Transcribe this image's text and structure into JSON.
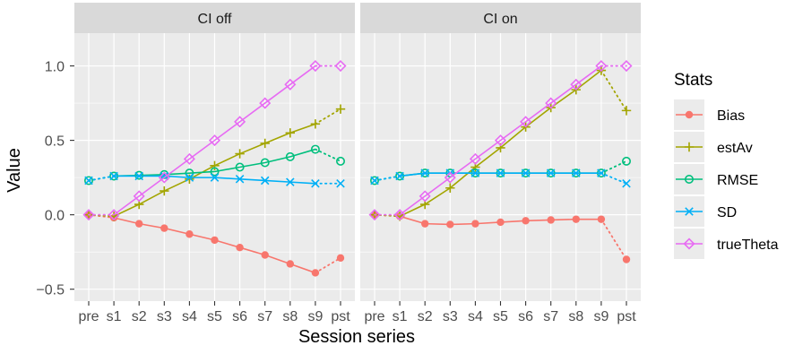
{
  "chart_data": {
    "type": "line",
    "categories": [
      "pre",
      "s1",
      "s2",
      "s3",
      "s4",
      "s5",
      "s6",
      "s7",
      "s8",
      "s9",
      "pst"
    ],
    "xlabel": "Session series",
    "ylabel": "Value",
    "ylim": [
      -0.58,
      1.22
    ],
    "yticks": [
      -0.5,
      0.0,
      0.5,
      1.0
    ],
    "ytick_labels": [
      "−0.5",
      "0.0",
      "0.5",
      "1.0"
    ],
    "grid": true,
    "legend": {
      "title": "Stats",
      "placement": "right",
      "entries": [
        "Bias",
        "estAv",
        "RMSE",
        "SD",
        "trueTheta"
      ]
    },
    "colors": {
      "Bias": "#F8766D",
      "estAv": "#A3A500",
      "RMSE": "#00BF7D",
      "SD": "#00B0F6",
      "trueTheta": "#E76BF3",
      "panel_bg": "#EBEBEB",
      "strip_bg": "#D9D9D9",
      "grid": "#FFFFFF"
    },
    "markers": {
      "Bias": "dot-filled",
      "estAv": "plus",
      "RMSE": "circle-open",
      "SD": "cross",
      "trueTheta": "diamond-open"
    },
    "panels": [
      {
        "title": "CI off",
        "series": [
          {
            "name": "Bias",
            "values": [
              0.0,
              -0.02,
              -0.06,
              -0.09,
              -0.13,
              -0.17,
              -0.22,
              -0.27,
              -0.33,
              -0.39,
              -0.29
            ]
          },
          {
            "name": "estAv",
            "values": [
              0.0,
              -0.01,
              0.07,
              0.16,
              0.24,
              0.33,
              0.41,
              0.48,
              0.55,
              0.61,
              0.71
            ]
          },
          {
            "name": "RMSE",
            "values": [
              0.23,
              0.26,
              0.265,
              0.27,
              0.28,
              0.29,
              0.32,
              0.35,
              0.39,
              0.44,
              0.36
            ]
          },
          {
            "name": "SD",
            "values": [
              0.23,
              0.26,
              0.26,
              0.26,
              0.25,
              0.25,
              0.24,
              0.23,
              0.22,
              0.21,
              0.21
            ]
          },
          {
            "name": "trueTheta",
            "values": [
              0.0,
              0.0,
              0.125,
              0.25,
              0.375,
              0.5,
              0.625,
              0.75,
              0.875,
              1.0,
              1.0
            ]
          }
        ]
      },
      {
        "title": "CI on",
        "series": [
          {
            "name": "Bias",
            "values": [
              0.0,
              -0.01,
              -0.06,
              -0.065,
              -0.06,
              -0.05,
              -0.04,
              -0.035,
              -0.03,
              -0.03,
              -0.3
            ]
          },
          {
            "name": "estAv",
            "values": [
              0.0,
              -0.01,
              0.07,
              0.18,
              0.32,
              0.45,
              0.59,
              0.72,
              0.84,
              0.97,
              0.7
            ]
          },
          {
            "name": "RMSE",
            "values": [
              0.23,
              0.26,
              0.28,
              0.28,
              0.28,
              0.28,
              0.28,
              0.28,
              0.28,
              0.28,
              0.36
            ]
          },
          {
            "name": "SD",
            "values": [
              0.23,
              0.26,
              0.28,
              0.28,
              0.28,
              0.28,
              0.28,
              0.28,
              0.28,
              0.28,
              0.21
            ]
          },
          {
            "name": "trueTheta",
            "values": [
              0.0,
              0.0,
              0.125,
              0.25,
              0.375,
              0.5,
              0.625,
              0.75,
              0.875,
              1.0,
              1.0
            ]
          }
        ]
      }
    ]
  }
}
